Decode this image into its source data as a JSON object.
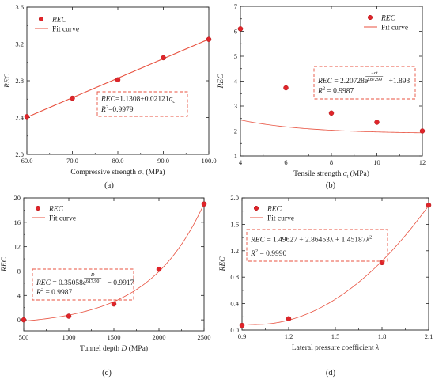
{
  "colors": {
    "fit": "#e8513f",
    "point": "#e0242a",
    "annot_border": "#e8513f",
    "axis": "#222222"
  },
  "legend": {
    "points_label": "REC",
    "fit_label": "Fit curve"
  },
  "panels": [
    {
      "label": "(a)",
      "xlabel": "Compressive strength σc (MPa)",
      "xlabel_parts": [
        "Compressive strength ",
        "σ",
        "c",
        " (MPa)"
      ],
      "ylabel": "REC",
      "eq_lines": [
        {
          "pre": "REC",
          "body": "=1.1308+0.02121",
          "sym": "σ",
          "sub": "c"
        },
        {
          "pre": "R",
          "sup": "2",
          "body": "=0.9979"
        }
      ]
    },
    {
      "label": "(b)",
      "xlabel": "Tensile strength σt (MPa)",
      "xlabel_parts": [
        "Tensile strength ",
        "σ",
        "t",
        " (MPa)"
      ],
      "ylabel": "REC",
      "eq_lines": [
        {
          "pre": "REC",
          "body": " = 2.20728e",
          "exp_num": "−σt",
          "exp_den": "2.87299",
          "tail": " +1.893"
        },
        {
          "pre": "R",
          "sup": "2",
          "body": " = 0.9987"
        }
      ]
    },
    {
      "label": "(c)",
      "xlabel": "Tunnel depth D (MPa)",
      "xlabel_parts": [
        "Tunnel depth ",
        "D",
        "",
        " (MPa)"
      ],
      "ylabel": "REC",
      "eq_lines": [
        {
          "pre": "REC",
          "body": " = 0.35058e",
          "exp_num": "D",
          "exp_den": "617.90",
          "tail": " − 0.9917"
        },
        {
          "pre": "R",
          "sup": "2",
          "body": " = 0.9987"
        }
      ]
    },
    {
      "label": "(d)",
      "xlabel": "Lateral pressure  coefficient λ",
      "xlabel_parts": [
        "Lateral pressure  coefficient ",
        "λ",
        "",
        ""
      ],
      "ylabel": "REC",
      "eq_lines": [
        {
          "pre": "REC",
          "body": " = 1.49627 + 2.86453λ + 1.45187λ",
          "sup2": "2"
        },
        {
          "pre": "R",
          "sup": "2",
          "body": " = 0.9990"
        }
      ]
    }
  ],
  "chart_data": [
    {
      "type": "scatter",
      "title": "",
      "xlabel": "Compressive strength σc (MPa)",
      "ylabel": "REC",
      "xlim": [
        60,
        100
      ],
      "ylim": [
        2.0,
        3.6
      ],
      "xticks": [
        60,
        70,
        80,
        90,
        100
      ],
      "yticks": [
        2.0,
        2.4,
        2.8,
        3.2,
        3.6
      ],
      "series": [
        {
          "name": "REC",
          "x": [
            60,
            70,
            80,
            90,
            100
          ],
          "y": [
            2.41,
            2.61,
            2.81,
            3.05,
            3.25
          ]
        },
        {
          "name": "Fit curve",
          "fit": "linear",
          "equation": "REC=1.1308+0.02121σc",
          "r2": 0.9979
        }
      ],
      "legend": "top-left"
    },
    {
      "type": "scatter",
      "title": "",
      "xlabel": "Tensile strength σt (MPa)",
      "ylabel": "REC",
      "xlim": [
        4,
        12
      ],
      "ylim": [
        1,
        7
      ],
      "xticks": [
        4,
        6,
        8,
        10,
        12
      ],
      "yticks": [
        1,
        2,
        3,
        4,
        5,
        6,
        7
      ],
      "series": [
        {
          "name": "REC",
          "x": [
            4,
            6,
            8,
            10,
            12
          ],
          "y": [
            6.1,
            3.73,
            2.72,
            2.35,
            2.0
          ]
        },
        {
          "name": "Fit curve",
          "fit": "exponential",
          "equation": "REC = 2.20728e^(−σt/2.87299) + 1.893",
          "r2": 0.9987
        }
      ],
      "legend": "top-right"
    },
    {
      "type": "scatter",
      "title": "",
      "xlabel": "Tunnel depth D (MPa)",
      "ylabel": "REC",
      "xlim": [
        500,
        2500
      ],
      "ylim": [
        -1.8,
        20
      ],
      "xticks": [
        500,
        1000,
        1500,
        2000,
        2500
      ],
      "yticks": [
        0,
        4,
        8,
        12,
        16,
        20
      ],
      "series": [
        {
          "name": "REC",
          "x": [
            500,
            1000,
            1500,
            2000,
            2500
          ],
          "y": [
            0.0,
            0.6,
            2.6,
            8.3,
            19.0
          ]
        },
        {
          "name": "Fit curve",
          "fit": "exponential",
          "equation": "REC = 0.35058e^(D/617.90) − 0.9917",
          "r2": 0.9987
        }
      ],
      "legend": "top-left"
    },
    {
      "type": "scatter",
      "title": "",
      "xlabel": "Lateral pressure  coefficient λ",
      "ylabel": "REC",
      "xlim": [
        0.9,
        2.1
      ],
      "ylim": [
        0.0,
        2.0
      ],
      "xticks": [
        0.9,
        1.2,
        1.5,
        1.8,
        2.1
      ],
      "yticks": [
        0.0,
        0.4,
        0.8,
        1.2,
        1.6,
        2.0
      ],
      "series": [
        {
          "name": "REC",
          "x": [
            0.9,
            1.2,
            1.5,
            1.8,
            2.1
          ],
          "y": [
            0.07,
            0.17,
            null,
            1.02,
            1.89
          ]
        },
        {
          "name": "Fit curve",
          "fit": "quadratic",
          "equation": "REC = 1.49627 + 2.86453λ + 1.45187λ²",
          "r2": 0.999
        }
      ],
      "legend": "top-left"
    }
  ]
}
